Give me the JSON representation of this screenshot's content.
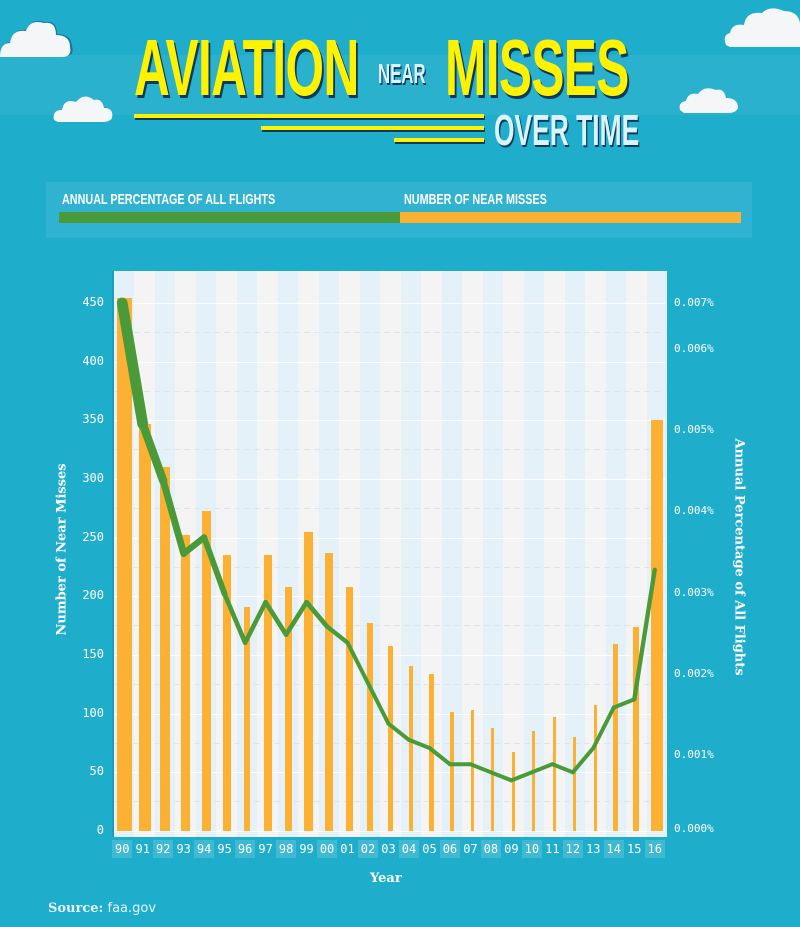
{
  "title": {
    "word1": "AVIATION",
    "word2": "NEAR",
    "word3": "MISSES",
    "subtitle": "OVER TIME"
  },
  "legend": {
    "items": [
      {
        "label": "ANNUAL PERCENTAGE OF ALL FLIGHTS",
        "color": "#4a9a3a"
      },
      {
        "label": "NUMBER OF NEAR MISSES",
        "color": "#fdb133"
      }
    ]
  },
  "axes": {
    "left_title": "Number of Near Misses",
    "right_title": "Annual Percentage of All Flights",
    "x_title": "Year",
    "left_ticks": [
      "450",
      "400",
      "350",
      "300",
      "250",
      "200",
      "150",
      "100",
      "50",
      "0"
    ],
    "right_ticks": [
      "0.007%",
      "0.006%",
      "0.005%",
      "0.004%",
      "0.003%",
      "0.002%",
      "0.001%",
      "0.000%"
    ]
  },
  "source": {
    "label": "Source:",
    "value": "faa.gov"
  },
  "colors": {
    "background": "#1fadcc",
    "bar": "#fdb133",
    "line": "#4a9a3a",
    "title_yellow": "#fff200"
  },
  "chart_data": {
    "type": "bar",
    "title": "Aviation Near Misses Over Time",
    "xlabel": "Year",
    "ylabel": "Number of Near Misses",
    "y2label": "Annual Percentage of All Flights",
    "ylim": [
      0,
      450
    ],
    "y2lim": [
      0.0,
      0.007
    ],
    "grid": true,
    "legend_position": "top",
    "categories": [
      "90",
      "91",
      "92",
      "93",
      "94",
      "95",
      "96",
      "97",
      "98",
      "99",
      "00",
      "01",
      "02",
      "03",
      "04",
      "05",
      "06",
      "07",
      "08",
      "09",
      "10",
      "11",
      "12",
      "13",
      "14",
      "15",
      "16"
    ],
    "series": [
      {
        "name": "Number of Near Misses",
        "type": "bar",
        "axis": "left",
        "values": [
          454,
          347,
          310,
          252,
          273,
          235,
          191,
          235,
          208,
          255,
          237,
          208,
          177,
          158,
          141,
          134,
          101,
          103,
          88,
          67,
          85,
          97,
          80,
          107,
          159,
          174,
          350
        ]
      },
      {
        "name": "Annual Percentage of All Flights",
        "type": "line",
        "axis": "right",
        "unit": "%",
        "values": [
          0.007,
          0.005,
          0.0043,
          0.0034,
          0.0036,
          0.0029,
          0.0023,
          0.0028,
          0.0024,
          0.0028,
          0.0025,
          0.0023,
          0.0018,
          0.0013,
          0.0011,
          0.001,
          0.0008,
          0.0008,
          0.0007,
          0.0006,
          0.0007,
          0.0008,
          0.0007,
          0.001,
          0.0015,
          0.0016,
          0.0032
        ]
      }
    ]
  }
}
